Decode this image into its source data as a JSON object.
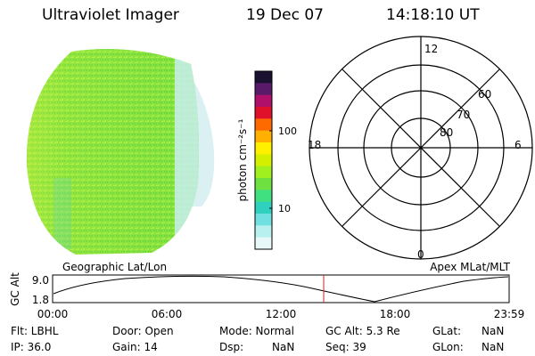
{
  "header": {
    "instrument": "Ultraviolet Imager",
    "date": "19 Dec 07",
    "time": "14:18:10 UT"
  },
  "image_panel": {
    "subject": "auroral-uv-image",
    "colors": {
      "main": "#7ee33c",
      "light": "#a8f048",
      "edge": "#c8ecf0"
    }
  },
  "colorbar": {
    "label": "photon cm⁻²s⁻¹",
    "ticks": [
      "100",
      "10"
    ],
    "colors": [
      "#1a1030",
      "#5a1a6a",
      "#b0106a",
      "#e0102a",
      "#ff6a00",
      "#ffb000",
      "#fff000",
      "#d4f000",
      "#a0f020",
      "#6ee040",
      "#40e080",
      "#30d0c0",
      "#70e0e0",
      "#b8f0f0",
      "#e8f8f8"
    ]
  },
  "polar_plot": {
    "hour_labels": {
      "top": "12",
      "left": "18",
      "right": "6",
      "bottom": "0"
    },
    "lat_labels": [
      "60",
      "70",
      "80"
    ]
  },
  "orbit_plot": {
    "left_label": "Geographic Lat/Lon",
    "right_label": "Apex MLat/MLT",
    "y_axis_label": "GC Alt",
    "y_ticks": [
      "9.0",
      "1.8"
    ],
    "x_ticks": [
      "00:00",
      "06:00",
      "12:00",
      "18:00",
      "23:59"
    ],
    "marker_color": "#d02020"
  },
  "info": {
    "row1": {
      "flt": "Flt: LBHL",
      "door": "Door: Open",
      "mode": "Mode: Normal",
      "gc_alt": "GC Alt: 5.3 Re",
      "glat_label": "GLat:",
      "glat_value": "NaN"
    },
    "row2": {
      "ip": "IP: 36.0",
      "gain": "Gain: 14",
      "dsp_label": "Dsp:",
      "dsp_value": "NaN",
      "seq": "Seq: 39",
      "glon_label": "GLon:",
      "glon_value": "NaN"
    }
  }
}
